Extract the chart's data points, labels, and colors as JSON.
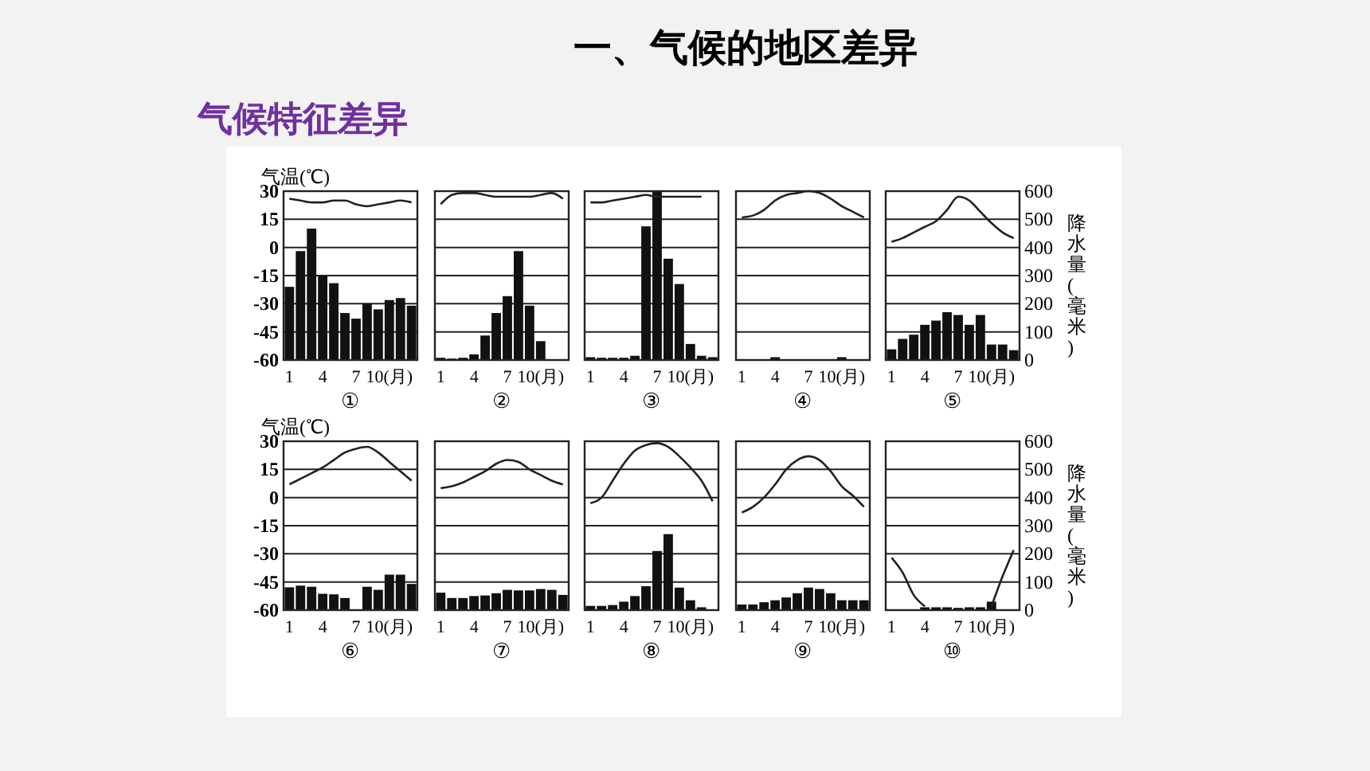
{
  "chart_data": [
    {
      "type": "other",
      "title": "一、气候的地区差异",
      "subtitle": "气候特征差异"
    },
    {
      "type": "bar",
      "xlabel": "①",
      "ylabel": "气温(℃)",
      "categories": [
        "1",
        null,
        null,
        "4",
        null,
        null,
        "7",
        null,
        null,
        "10(月)",
        null,
        null
      ],
      "ylim": [
        -60,
        30
      ],
      "yticks": [
        30,
        15,
        0,
        -15,
        -30,
        -45,
        -60
      ],
      "y2lim": [
        0,
        600
      ],
      "grid": "y",
      "series": [
        {
          "axis": "y2",
          "color": "#111111",
          "values": [
            260,
            387,
            467,
            300,
            273,
            167,
            147,
            200,
            180,
            213,
            220,
            193
          ]
        },
        {
          "type": "line",
          "axis": "y",
          "color": "#222222",
          "values": [
            26,
            25,
            24,
            24,
            25,
            25,
            23,
            22,
            23,
            24,
            25,
            24
          ]
        }
      ]
    },
    {
      "type": "bar",
      "xlabel": "②",
      "categories": [
        "1",
        null,
        null,
        "4",
        null,
        null,
        "7",
        null,
        null,
        "10(月)",
        null,
        null
      ],
      "ylim": [
        -60,
        30
      ],
      "y2lim": [
        0,
        600
      ],
      "grid": "y",
      "series": [
        {
          "axis": "y2",
          "color": "#111111",
          "values": [
            8,
            5,
            8,
            20,
            87,
            167,
            227,
            387,
            193,
            67,
            0,
            0
          ]
        },
        {
          "type": "line",
          "axis": "y",
          "color": "#222222",
          "values": [
            23,
            28,
            29,
            29,
            28,
            27,
            27,
            27,
            27,
            28,
            29,
            26
          ]
        }
      ]
    },
    {
      "type": "bar",
      "xlabel": "③",
      "categories": [
        "1",
        null,
        null,
        "4",
        null,
        null,
        "7",
        null,
        null,
        "10(月)",
        null,
        null
      ],
      "ylim": [
        -60,
        30
      ],
      "y2lim": [
        0,
        600
      ],
      "grid": "y",
      "series": [
        {
          "axis": "y2",
          "color": "#111111",
          "values": [
            10,
            8,
            8,
            8,
            15,
            475,
            600,
            360,
            270,
            57,
            15,
            10
          ]
        },
        {
          "type": "line",
          "axis": "y",
          "color": "#222222",
          "values": [
            24,
            24,
            25,
            26,
            27,
            28,
            27,
            27,
            27,
            27,
            27,
            null
          ]
        }
      ]
    },
    {
      "type": "bar",
      "xlabel": "④",
      "categories": [
        "1",
        null,
        null,
        "4",
        null,
        null,
        "7",
        null,
        null,
        "10(月)",
        null,
        null
      ],
      "ylim": [
        -60,
        30
      ],
      "y2lim": [
        0,
        600
      ],
      "grid": "y",
      "series": [
        {
          "axis": "y2",
          "color": "#111111",
          "values": [
            0,
            0,
            0,
            10,
            0,
            0,
            0,
            0,
            0,
            10,
            0,
            0
          ]
        },
        {
          "type": "line",
          "axis": "y",
          "color": "#222222",
          "values": [
            16,
            17,
            20,
            25,
            28,
            29,
            30,
            29,
            26,
            22,
            19,
            16
          ]
        }
      ]
    },
    {
      "type": "bar",
      "xlabel": "⑤",
      "y2label": "降水量(毫米)",
      "categories": [
        "1",
        null,
        null,
        "4",
        null,
        null,
        "7",
        null,
        null,
        "10(月)",
        null,
        null
      ],
      "ylim": [
        -60,
        30
      ],
      "y2lim": [
        0,
        600
      ],
      "y2ticks": [
        600,
        500,
        400,
        300,
        200,
        100,
        0
      ],
      "grid": "y",
      "series": [
        {
          "axis": "y2",
          "color": "#111111",
          "values": [
            38,
            75,
            90,
            125,
            140,
            170,
            160,
            125,
            160,
            55,
            55,
            35
          ]
        },
        {
          "type": "line",
          "axis": "y",
          "color": "#222222",
          "values": [
            3,
            5,
            8,
            11,
            14,
            20,
            27,
            25,
            19,
            13,
            8,
            5
          ]
        }
      ]
    },
    {
      "type": "bar",
      "xlabel": "⑥",
      "ylabel": "气温(℃)",
      "categories": [
        "1",
        null,
        null,
        "4",
        null,
        null,
        "7",
        null,
        null,
        "10(月)",
        null,
        null
      ],
      "ylim": [
        -60,
        30
      ],
      "yticks": [
        30,
        15,
        0,
        -15,
        -30,
        -45,
        -60
      ],
      "y2lim": [
        0,
        600
      ],
      "grid": "y",
      "series": [
        {
          "axis": "y2",
          "color": "#111111",
          "values": [
            81,
            87,
            83,
            58,
            56,
            43,
            0,
            83,
            72,
            126,
            126,
            93
          ]
        },
        {
          "type": "line",
          "axis": "y",
          "color": "#222222",
          "values": [
            7,
            10,
            13,
            16,
            20,
            24,
            26,
            27,
            24,
            19,
            14,
            9
          ]
        }
      ]
    },
    {
      "type": "bar",
      "xlabel": "⑦",
      "categories": [
        "1",
        null,
        null,
        "4",
        null,
        null,
        "7",
        null,
        null,
        "10(月)",
        null,
        null
      ],
      "ylim": [
        -60,
        30
      ],
      "y2lim": [
        0,
        600
      ],
      "grid": "y",
      "series": [
        {
          "axis": "y2",
          "color": "#111111",
          "values": [
            62,
            43,
            43,
            50,
            52,
            60,
            72,
            70,
            70,
            75,
            72,
            54
          ]
        },
        {
          "type": "line",
          "axis": "y",
          "color": "#222222",
          "values": [
            5,
            6,
            8,
            11,
            14,
            18,
            20,
            19,
            15,
            12,
            9,
            7
          ]
        }
      ]
    },
    {
      "type": "bar",
      "xlabel": "⑧",
      "categories": [
        "1",
        null,
        null,
        "4",
        null,
        null,
        "7",
        null,
        null,
        "10(月)",
        null,
        null
      ],
      "ylim": [
        -60,
        30
      ],
      "y2lim": [
        0,
        600
      ],
      "grid": "y",
      "series": [
        {
          "axis": "y2",
          "color": "#111111",
          "values": [
            15,
            15,
            18,
            30,
            50,
            85,
            210,
            270,
            80,
            35,
            10,
            0
          ]
        },
        {
          "type": "line",
          "axis": "y",
          "color": "#222222",
          "values": [
            -3,
            0,
            9,
            18,
            25,
            28,
            29,
            27,
            22,
            16,
            9,
            -2
          ]
        }
      ]
    },
    {
      "type": "bar",
      "xlabel": "⑨",
      "categories": [
        "1",
        null,
        null,
        "4",
        null,
        null,
        "7",
        null,
        null,
        "10(月)",
        null,
        null
      ],
      "ylim": [
        -60,
        30
      ],
      "y2lim": [
        0,
        600
      ],
      "grid": "y",
      "series": [
        {
          "axis": "y2",
          "color": "#111111",
          "values": [
            20,
            20,
            28,
            35,
            45,
            60,
            80,
            75,
            60,
            35,
            35,
            35
          ]
        },
        {
          "type": "line",
          "axis": "y",
          "color": "#222222",
          "values": [
            -8,
            -5,
            0,
            7,
            15,
            20,
            22,
            20,
            14,
            6,
            1,
            -5
          ]
        }
      ]
    },
    {
      "type": "bar",
      "xlabel": "⑩",
      "y2label": "降水量(毫米)",
      "categories": [
        "1",
        null,
        null,
        "4",
        null,
        null,
        "7",
        null,
        null,
        "10(月)",
        null,
        null
      ],
      "ylim": [
        -60,
        30
      ],
      "y2lim": [
        0,
        600
      ],
      "y2ticks": [
        600,
        500,
        400,
        300,
        200,
        100,
        0
      ],
      "grid": "y",
      "series": [
        {
          "axis": "y2",
          "color": "#111111",
          "values": [
            0,
            0,
            0,
            10,
            10,
            10,
            8,
            10,
            10,
            30,
            0,
            0
          ]
        },
        {
          "type": "line",
          "axis": "y",
          "color": "#222222",
          "values": [
            -32,
            -40,
            -52,
            -58,
            null,
            null,
            null,
            null,
            null,
            -58,
            -42,
            -28
          ]
        }
      ]
    }
  ]
}
